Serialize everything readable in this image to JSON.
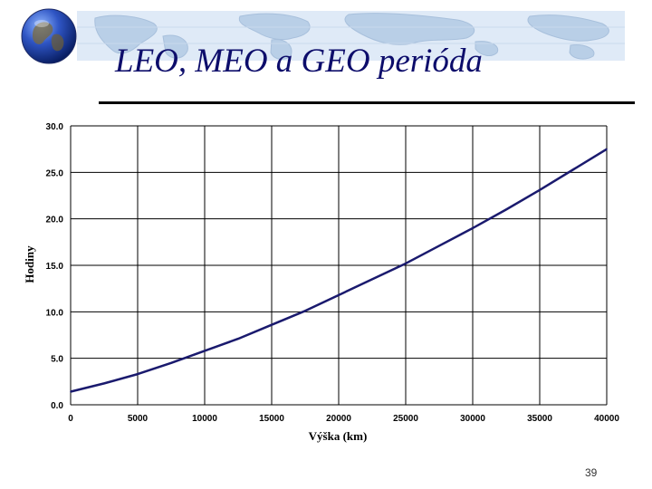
{
  "slide": {
    "title": "LEO, MEO a GEO perióda",
    "page_number": "39",
    "title_color": "#0d0d6b",
    "banner_color": "#dfeaf7",
    "banner_land_color": "#b9cfe7",
    "globe_icon": "earth-globe-icon"
  },
  "chart_data": {
    "type": "line",
    "xlabel": "Výška (km)",
    "ylabel": "Hodiny",
    "xlim": [
      0,
      40000
    ],
    "ylim": [
      0,
      30
    ],
    "x_ticks": [
      0,
      5000,
      10000,
      15000,
      20000,
      25000,
      30000,
      35000,
      40000
    ],
    "x_tick_labels": [
      "0",
      "5000",
      "10000",
      "15000",
      "20000",
      "25000",
      "30000",
      "35000",
      "40000"
    ],
    "y_ticks": [
      0,
      5,
      10,
      15,
      20,
      25,
      30
    ],
    "y_tick_labels": [
      "0.0",
      "5.0",
      "10.0",
      "15.0",
      "20.0",
      "25.0",
      "30.0"
    ],
    "grid": true,
    "line_color": "#1a1a6e",
    "series": [
      {
        "x": [
          0,
          2500,
          5000,
          7500,
          10000,
          12500,
          15000,
          17500,
          20000,
          22500,
          25000,
          27500,
          30000,
          32500,
          35000,
          37500,
          40000
        ],
        "values": [
          1.41,
          2.3,
          3.3,
          4.5,
          5.8,
          7.1,
          8.6,
          10.1,
          11.8,
          13.5,
          15.2,
          17.1,
          19.0,
          21.0,
          23.1,
          25.3,
          27.5
        ]
      }
    ]
  }
}
